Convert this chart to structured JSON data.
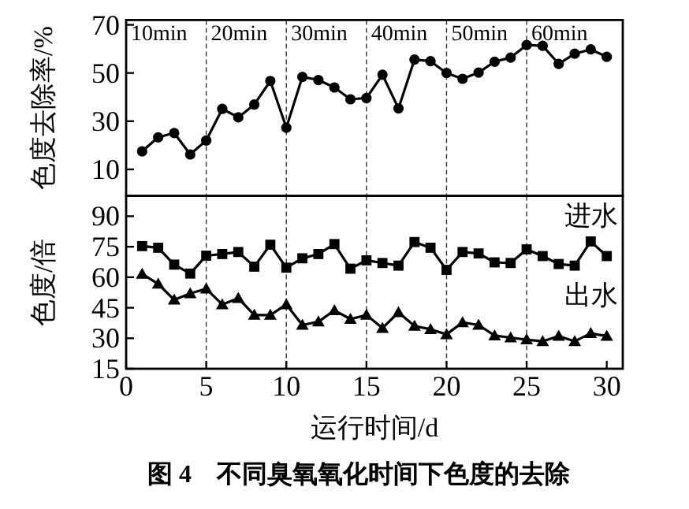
{
  "chart_data": [
    {
      "type": "line",
      "ylabel": "色度去除率/%",
      "xlim": [
        0,
        31
      ],
      "ylim": [
        -1,
        72
      ],
      "yticks": [
        10,
        30,
        50,
        70
      ],
      "tick_labels": "y",
      "line_style": "solid",
      "x": [
        1,
        2,
        3,
        4,
        5,
        6,
        7,
        8,
        9,
        10,
        11,
        12,
        13,
        14,
        15,
        16,
        17,
        18,
        19,
        20,
        21,
        22,
        23,
        24,
        25,
        26,
        27,
        28,
        29,
        30
      ],
      "series": [
        {
          "color": "#000000",
          "marker": "circle",
          "values": [
            17.5,
            23.3,
            25.1,
            16.2,
            22,
            35.1,
            31.6,
            36.9,
            46.7,
            27.3,
            48.4,
            47.1,
            44,
            39.1,
            39.6,
            49.3,
            35.3,
            55.6,
            54.9,
            50,
            47.6,
            50.2,
            54.7,
            56.4,
            61.6,
            61.3,
            53.8,
            58,
            59.8,
            56.7
          ]
        }
      ],
      "ref_lines": [
        {
          "axis": "x",
          "value": 5,
          "line_style": "dashed"
        },
        {
          "axis": "x",
          "value": 10,
          "line_style": "dashed"
        },
        {
          "axis": "x",
          "value": 15,
          "line_style": "dashed"
        },
        {
          "axis": "x",
          "value": 20,
          "line_style": "dashed"
        },
        {
          "axis": "x",
          "value": 25,
          "line_style": "dashed"
        }
      ],
      "annotations": [
        "10min",
        "20min",
        "30min",
        "40min",
        "50min",
        "60min"
      ]
    },
    {
      "type": "line",
      "ylabel": "色度/倍",
      "xlabel": "运行时间/d",
      "xlim": [
        0,
        31
      ],
      "xticks": [
        0,
        5,
        10,
        15,
        20,
        25,
        30
      ],
      "ylim": [
        15,
        100
      ],
      "yticks": [
        15,
        30,
        45,
        60,
        75,
        90
      ],
      "line_style": "solid",
      "x": [
        1,
        2,
        3,
        4,
        5,
        6,
        7,
        8,
        9,
        10,
        11,
        12,
        13,
        14,
        15,
        16,
        17,
        18,
        19,
        20,
        21,
        22,
        23,
        24,
        25,
        26,
        27,
        28,
        29,
        30
      ],
      "series": [
        {
          "name": "进水",
          "color": "#000000",
          "marker": "square",
          "values": [
            75.3,
            74.5,
            66.2,
            61.8,
            70.6,
            71.4,
            72.4,
            65.2,
            76,
            64.7,
            69.3,
            71.4,
            76.3,
            64.2,
            68.3,
            67,
            65.7,
            77.3,
            74.5,
            63.6,
            72.4,
            71.7,
            67.3,
            67,
            73.7,
            70.4,
            66.5,
            65.7,
            77.6,
            70.4
          ]
        },
        {
          "name": "出水",
          "color": "#000000",
          "marker": "triangle",
          "values": [
            61.6,
            56.7,
            48.9,
            52,
            54.3,
            46.6,
            49.7,
            41.4,
            41.4,
            46.6,
            36.5,
            38.1,
            43.7,
            39.4,
            41.4,
            35,
            42.7,
            36,
            34.4,
            31.9,
            37.8,
            36.5,
            31.3,
            30.3,
            29.3,
            28.5,
            31.1,
            28.5,
            32.4,
            31.1
          ]
        }
      ],
      "ref_lines": [
        {
          "axis": "x",
          "value": 5,
          "line_style": "dashed"
        },
        {
          "axis": "x",
          "value": 10,
          "line_style": "dashed"
        },
        {
          "axis": "x",
          "value": 15,
          "line_style": "dashed"
        },
        {
          "axis": "x",
          "value": 20,
          "line_style": "dashed"
        },
        {
          "axis": "x",
          "value": 25,
          "line_style": "dashed"
        }
      ],
      "annotations": [
        "图 4　不同臭氧氧化时间下色度的去除"
      ]
    }
  ]
}
